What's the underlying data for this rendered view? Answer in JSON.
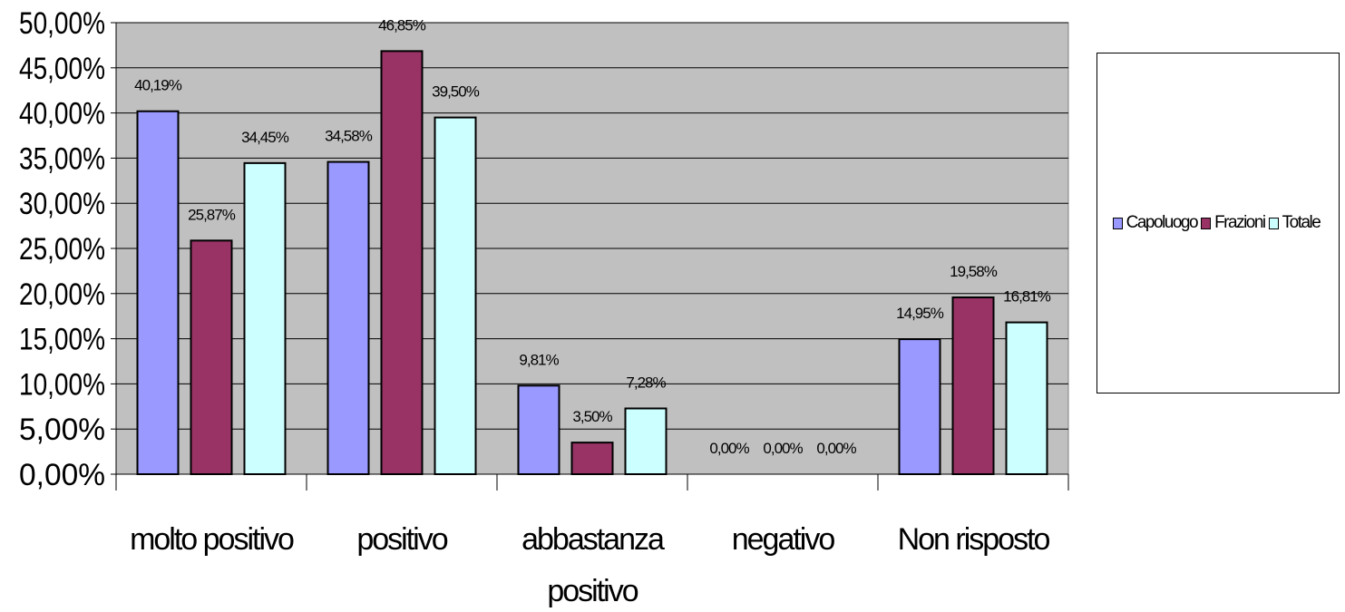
{
  "chart_data": {
    "type": "bar",
    "categories": [
      [
        "molto positivo"
      ],
      [
        "positivo"
      ],
      [
        "abbastanza",
        "positivo"
      ],
      [
        "negativo"
      ],
      [
        "Non risposto"
      ]
    ],
    "series": [
      {
        "name": "Capoluogo",
        "color": "#9999ff",
        "values": [
          40.19,
          34.58,
          9.81,
          0.0,
          14.95
        ],
        "labels": [
          "40,19%",
          "34,58%",
          "9,81%",
          "0,00%",
          "14,95%"
        ]
      },
      {
        "name": "Frazioni",
        "color": "#993366",
        "values": [
          25.87,
          46.85,
          3.5,
          0.0,
          19.58
        ],
        "labels": [
          "25,87%",
          "46,85%",
          "3,50%",
          "0,00%",
          "19,58%"
        ]
      },
      {
        "name": "Totale",
        "color": "#ccffff",
        "values": [
          34.45,
          39.5,
          7.28,
          0.0,
          16.81
        ],
        "labels": [
          "34,45%",
          "39,50%",
          "7,28%",
          "0,00%",
          "16,81%"
        ]
      }
    ],
    "ylim": [
      0,
      50
    ],
    "yticks": [
      "0,00%",
      "5,00%",
      "10,00%",
      "15,00%",
      "20,00%",
      "25,00%",
      "30,00%",
      "35,00%",
      "40,00%",
      "45,00%",
      "50,00%"
    ],
    "plot_background": "#c0c0c0",
    "grid": true,
    "legend_position": "right"
  }
}
